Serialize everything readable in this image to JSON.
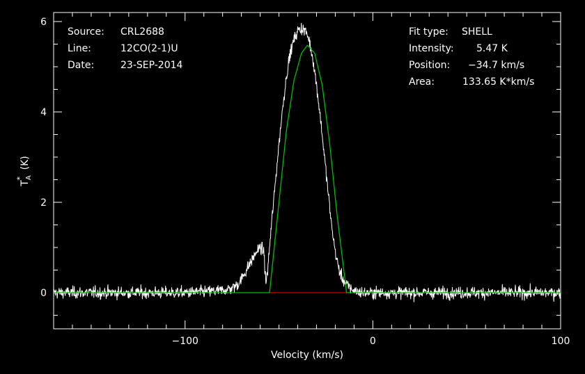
{
  "header": {
    "source_label": "Source:",
    "source_value": "CRL2688",
    "line_label": "Line:",
    "line_value": "12CO(2-1)U",
    "date_label": "Date:",
    "date_value": "23-SEP-2014"
  },
  "fit": {
    "type_label": "Fit type:",
    "type_value": "SHELL",
    "intensity_label": "Intensity:",
    "intensity_value": "5.47 K",
    "position_label": "Position:",
    "position_value": "−34.7 km/s",
    "area_label": "Area:",
    "area_value": "133.65 K*km/s"
  },
  "chart_data": {
    "type": "line",
    "xlabel": "Velocity (km/s)",
    "ylabel_main": "T",
    "ylabel_sub": "A",
    "ylabel_sup": "*",
    "ylabel_unit": "(K)",
    "xlim": [
      -170,
      100
    ],
    "ylim": [
      -0.8,
      6.2
    ],
    "xticks": [
      -100,
      0,
      100
    ],
    "xtick_labels": [
      "−100",
      "0",
      "100"
    ],
    "yticks": [
      0,
      2,
      4,
      6
    ],
    "ytick_labels": [
      "0",
      "2",
      "4",
      "6"
    ],
    "grid": false,
    "colors": {
      "spectrum": "#ffffff",
      "fit": "#00c000",
      "baseline": "#d00000",
      "frame": "#ffffff"
    },
    "series": [
      {
        "role": "spectrum",
        "x": [
          -170,
          -160,
          -150,
          -140,
          -130,
          -120,
          -110,
          -100,
          -90,
          -80,
          -75,
          -72,
          -70,
          -68,
          -66,
          -64,
          -62,
          -60,
          -58,
          -57,
          -56,
          -55,
          -54,
          -52,
          -50,
          -48,
          -46,
          -44,
          -42,
          -40,
          -38,
          -36,
          -34,
          -32,
          -30,
          -28,
          -26,
          -24,
          -22,
          -20,
          -18,
          -16,
          -14,
          -12,
          -10,
          -8,
          -5,
          0,
          10,
          20,
          40,
          60,
          80,
          100
        ],
        "y": [
          0.0,
          0.0,
          0.0,
          0.0,
          0.0,
          0.0,
          0.0,
          0.0,
          0.02,
          0.05,
          0.1,
          0.18,
          0.3,
          0.45,
          0.6,
          0.75,
          0.9,
          1.0,
          0.9,
          0.2,
          0.5,
          1.0,
          1.5,
          2.4,
          3.3,
          4.1,
          4.8,
          5.3,
          5.6,
          5.8,
          5.85,
          5.8,
          5.6,
          5.2,
          4.6,
          3.9,
          3.1,
          2.3,
          1.5,
          0.9,
          0.5,
          0.3,
          0.18,
          0.1,
          0.05,
          0.02,
          0.0,
          0.0,
          0.0,
          0.0,
          0.0,
          0.0,
          0.0,
          0.0
        ]
      },
      {
        "role": "fit",
        "x": [
          -170,
          -72,
          -55,
          -50,
          -46,
          -42,
          -38,
          -35,
          -34.7,
          -31,
          -27,
          -23,
          -19,
          -14,
          0,
          100
        ],
        "y": [
          0.0,
          0.0,
          0.0,
          2.0,
          3.6,
          4.7,
          5.3,
          5.47,
          5.47,
          5.3,
          4.6,
          3.3,
          1.7,
          0.0,
          0.0,
          0.0
        ]
      },
      {
        "role": "baseline",
        "x": [
          -55,
          -14
        ],
        "y": [
          0.0,
          0.0
        ]
      }
    ],
    "noise_rms": 0.12
  }
}
